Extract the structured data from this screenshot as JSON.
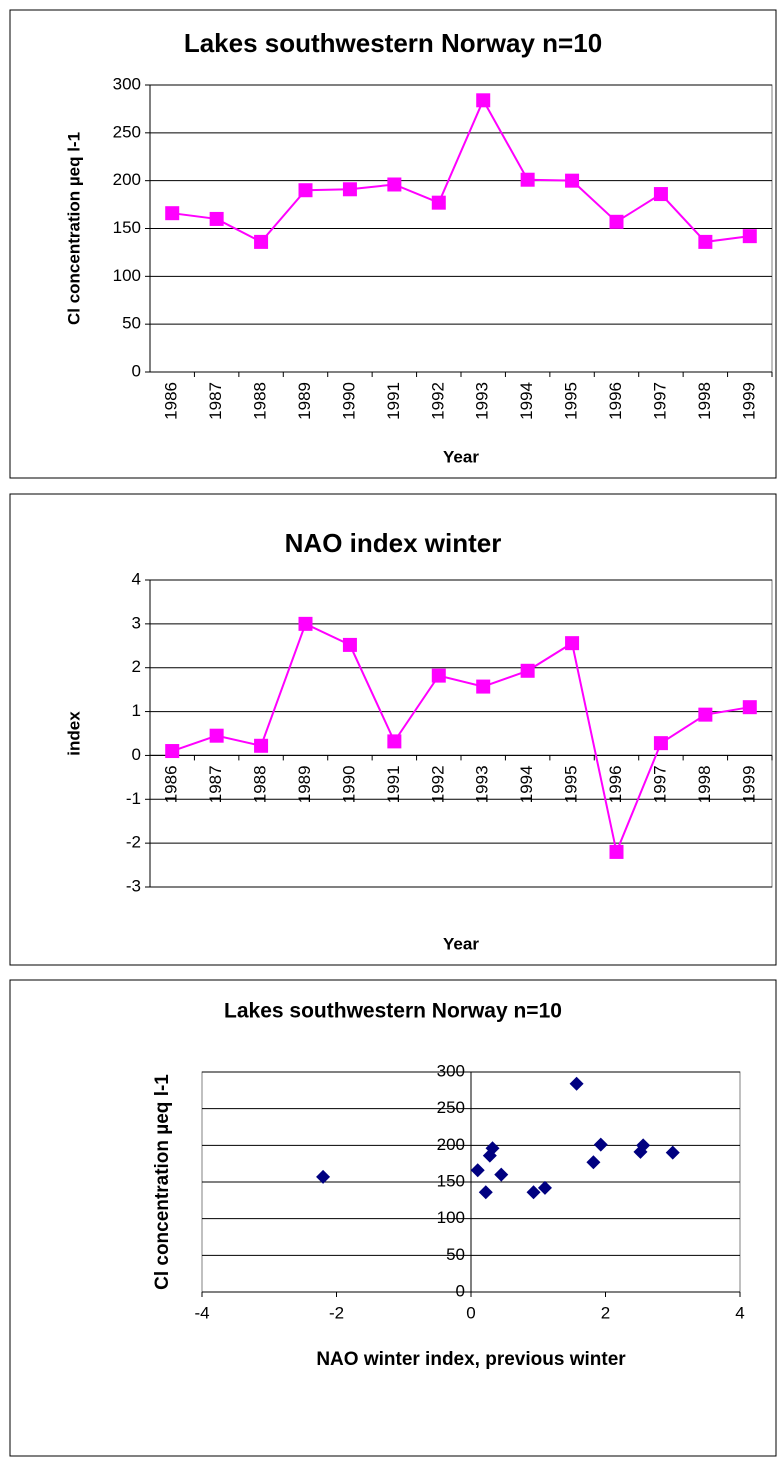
{
  "chart_data": [
    {
      "type": "line",
      "title": "Lakes southwestern Norway n=10",
      "x_label": "Year",
      "y_label": "Cl concentration µeq l-1",
      "categories": [
        "1986",
        "1987",
        "1988",
        "1989",
        "1990",
        "1991",
        "1992",
        "1993",
        "1994",
        "1995",
        "1996",
        "1997",
        "1998",
        "1999"
      ],
      "values": [
        166,
        160,
        136,
        190,
        191,
        196,
        177,
        284,
        201,
        200,
        157,
        186,
        136,
        142
      ],
      "color": "#ff00ff",
      "ylim": [
        0,
        300
      ],
      "yticks": [
        0,
        50,
        100,
        150,
        200,
        250,
        300
      ],
      "grid": true
    },
    {
      "type": "line",
      "title": "NAO index winter",
      "x_label": "Year",
      "y_label": "index",
      "categories": [
        "1986",
        "1987",
        "1988",
        "1989",
        "1990",
        "1991",
        "1992",
        "1993",
        "1994",
        "1995",
        "1996",
        "1997",
        "1998",
        "1999"
      ],
      "values": [
        0.1,
        0.45,
        0.22,
        3.0,
        2.52,
        0.32,
        1.82,
        1.57,
        1.93,
        2.56,
        -2.2,
        0.28,
        0.93,
        1.1
      ],
      "color": "#ff00ff",
      "ylim": [
        -3,
        4
      ],
      "yticks": [
        -3,
        -2,
        -1,
        0,
        1,
        2,
        3,
        4
      ],
      "grid": true
    },
    {
      "type": "scatter",
      "title": "Lakes southwestern Norway n=10",
      "x_label": "NAO winter index, previous winter",
      "y_label": "Cl concentration µeq l-1",
      "x": [
        0.1,
        0.45,
        0.22,
        3.0,
        2.52,
        0.32,
        1.82,
        1.57,
        1.93,
        2.56,
        -2.2,
        0.28,
        0.93,
        1.1
      ],
      "values": [
        166,
        160,
        136,
        190,
        191,
        196,
        177,
        284,
        201,
        200,
        157,
        186,
        136,
        142
      ],
      "color": "#000080",
      "xlim": [
        -4,
        4
      ],
      "xticks": [
        -4,
        -2,
        0,
        2,
        4
      ],
      "ylim": [
        0,
        300
      ],
      "yticks": [
        0,
        50,
        100,
        150,
        200,
        250,
        300
      ],
      "grid": true
    }
  ]
}
